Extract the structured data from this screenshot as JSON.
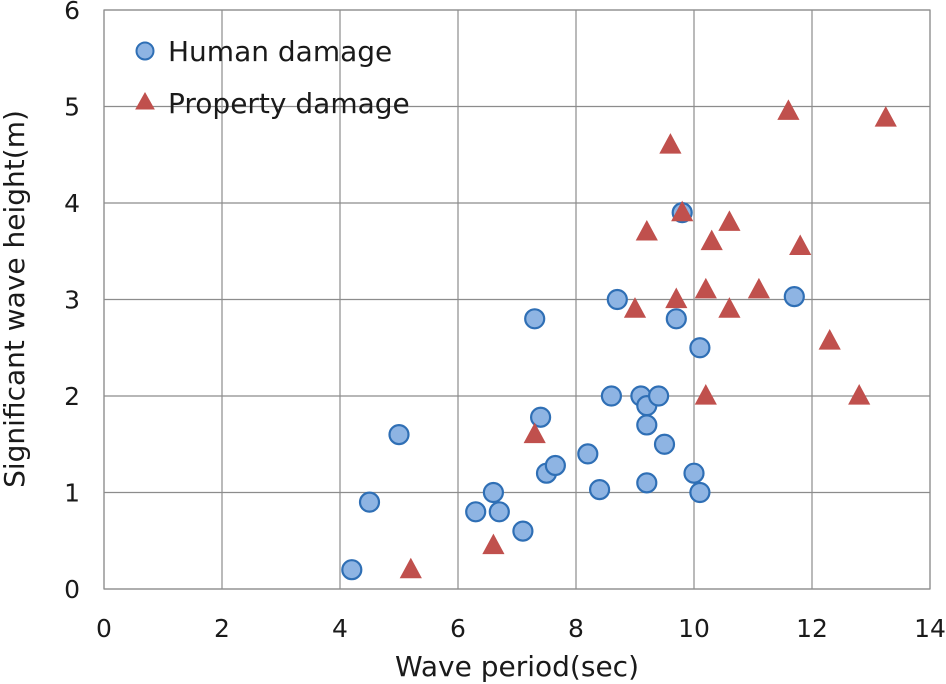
{
  "chart_data": {
    "type": "scatter",
    "title": "",
    "xlabel": "Wave period(sec)",
    "ylabel": "Significant wave height(m)",
    "xlim": [
      0,
      14
    ],
    "ylim": [
      0,
      6
    ],
    "xticks": [
      0,
      2,
      4,
      6,
      8,
      10,
      12,
      14
    ],
    "yticks": [
      0,
      1,
      2,
      3,
      4,
      5,
      6
    ],
    "grid": true,
    "legend_position": "top-left",
    "series": [
      {
        "name": "Human damage",
        "marker": "circle",
        "color": "#8eb4e3",
        "edge_color": "#2f6fb5",
        "points": [
          [
            4.2,
            0.2
          ],
          [
            4.5,
            0.9
          ],
          [
            5.0,
            1.6
          ],
          [
            6.3,
            0.8
          ],
          [
            6.6,
            1.0
          ],
          [
            6.7,
            0.8
          ],
          [
            7.1,
            0.6
          ],
          [
            7.3,
            2.8
          ],
          [
            7.4,
            1.78
          ],
          [
            7.5,
            1.2
          ],
          [
            7.65,
            1.28
          ],
          [
            8.2,
            1.4
          ],
          [
            8.4,
            1.03
          ],
          [
            8.6,
            2.0
          ],
          [
            8.7,
            3.0
          ],
          [
            9.1,
            2.0
          ],
          [
            9.2,
            1.9
          ],
          [
            9.2,
            1.7
          ],
          [
            9.2,
            1.1
          ],
          [
            9.4,
            2.0
          ],
          [
            9.5,
            1.5
          ],
          [
            9.7,
            2.8
          ],
          [
            9.8,
            3.9
          ],
          [
            10.0,
            1.2
          ],
          [
            10.1,
            2.5
          ],
          [
            10.1,
            1.0
          ],
          [
            11.7,
            3.03
          ]
        ]
      },
      {
        "name": "Property damage",
        "marker": "triangle",
        "color": "#c0504d",
        "edge_color": "#c0504d",
        "points": [
          [
            5.2,
            0.2
          ],
          [
            6.6,
            0.45
          ],
          [
            7.3,
            1.6
          ],
          [
            9.0,
            2.9
          ],
          [
            9.2,
            3.7
          ],
          [
            9.6,
            4.6
          ],
          [
            9.7,
            3.0
          ],
          [
            9.8,
            3.9
          ],
          [
            10.2,
            3.1
          ],
          [
            10.2,
            2.0
          ],
          [
            10.3,
            3.6
          ],
          [
            10.6,
            3.8
          ],
          [
            10.6,
            2.9
          ],
          [
            11.1,
            3.1
          ],
          [
            11.6,
            4.95
          ],
          [
            11.8,
            3.55
          ],
          [
            12.3,
            2.57
          ],
          [
            12.8,
            2.0
          ],
          [
            13.25,
            4.88
          ]
        ]
      }
    ]
  }
}
